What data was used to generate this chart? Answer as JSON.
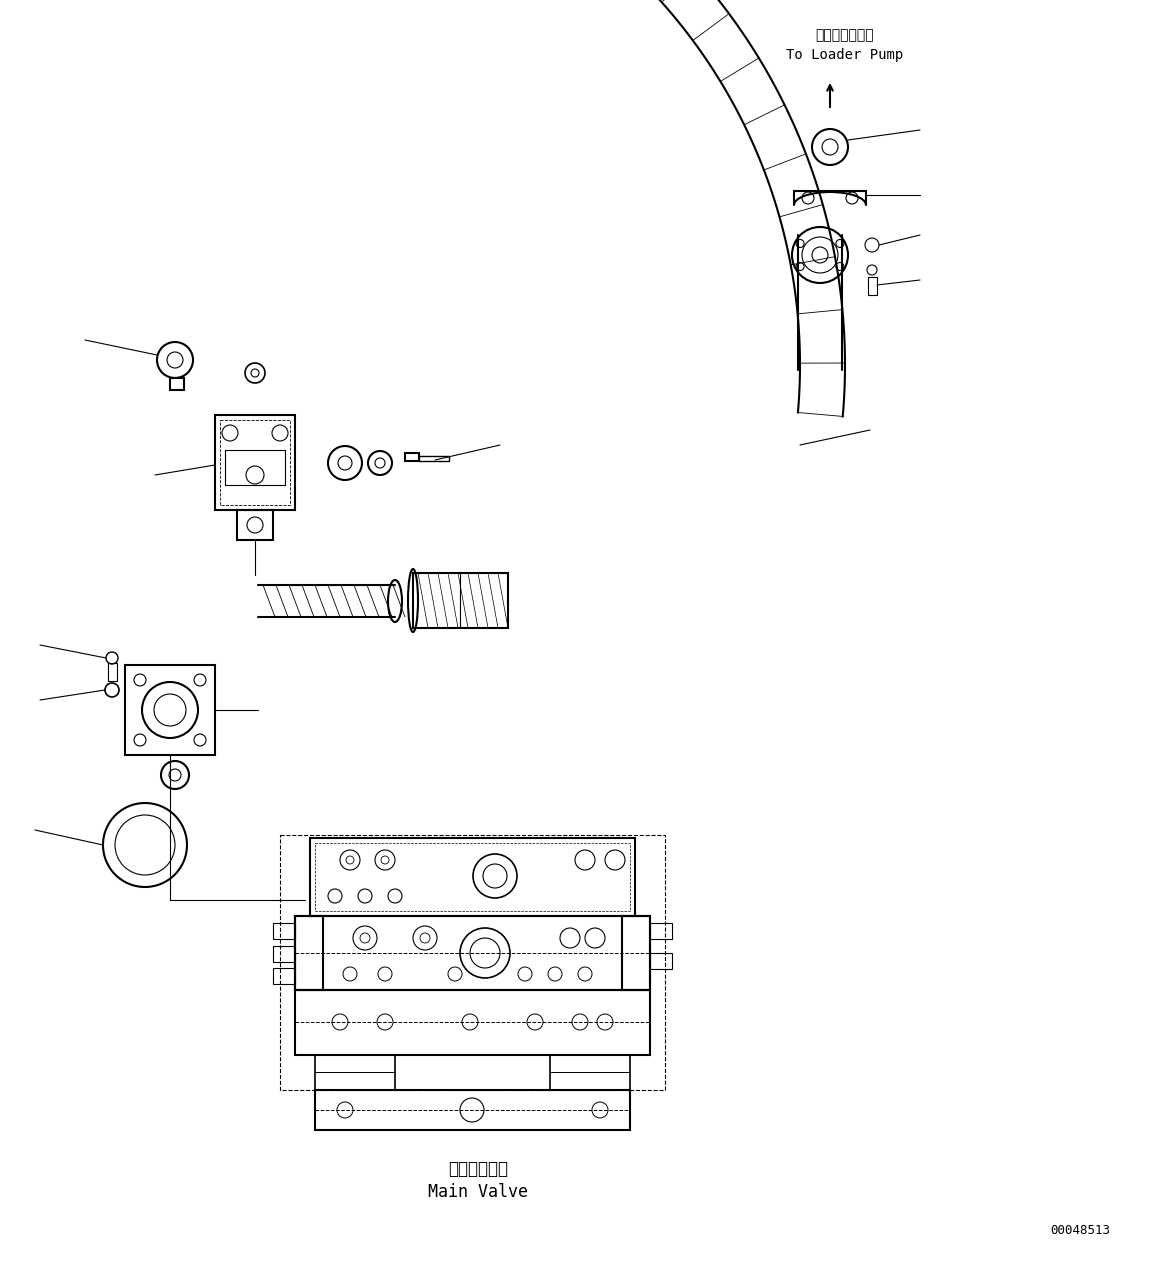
{
  "bg_color": "#ffffff",
  "line_color": "#000000",
  "figsize": [
    11.63,
    12.86
  ],
  "dpi": 100,
  "label_top_jp": "ローダポンプへ",
  "label_top_en": "To Loader Pump",
  "label_bottom_jp": "メインバルブ",
  "label_bottom_en": "Main Valve",
  "doc_number": "00048513"
}
